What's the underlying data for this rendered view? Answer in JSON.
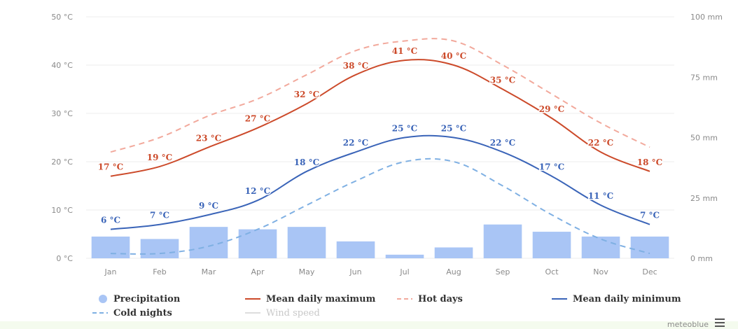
{
  "chart_data": {
    "type": "line",
    "categories": [
      "Jan",
      "Feb",
      "Mar",
      "Apr",
      "May",
      "Jun",
      "Jul",
      "Aug",
      "Sep",
      "Oct",
      "Nov",
      "Dec"
    ],
    "y_left": {
      "unit": "°C",
      "ylim": [
        0,
        50
      ],
      "ticks": [
        "0 °C",
        "10 °C",
        "20 °C",
        "30 °C",
        "40 °C",
        "50 °C"
      ]
    },
    "y_right": {
      "unit": "mm",
      "ylim": [
        0,
        100
      ],
      "ticks": [
        "0 mm",
        "25 mm",
        "50 mm",
        "75 mm",
        "100 mm"
      ]
    },
    "series": [
      {
        "name": "Precipitation",
        "kind": "bar",
        "axis": "right",
        "color": "#a9c5f5",
        "values": [
          9,
          8,
          13,
          12,
          13,
          7,
          1.5,
          4.5,
          14,
          11,
          9,
          9
        ]
      },
      {
        "name": "Mean daily maximum",
        "kind": "line",
        "axis": "left",
        "color": "#cc4a2a",
        "values": [
          17,
          19,
          23,
          27,
          32,
          38,
          41,
          40,
          35,
          29,
          22,
          18
        ],
        "labels": [
          "17 °C",
          "19 °C",
          "23 °C",
          "27 °C",
          "32 °C",
          "38 °C",
          "41 °C",
          "40 °C",
          "35 °C",
          "29 °C",
          "22 °C",
          "18 °C"
        ]
      },
      {
        "name": "Hot days",
        "kind": "line",
        "dash": true,
        "axis": "left",
        "color": "#f2a99c",
        "values": [
          22,
          25,
          29.5,
          33,
          38,
          43,
          45,
          45,
          40,
          34,
          28,
          23
        ]
      },
      {
        "name": "Mean daily minimum",
        "kind": "line",
        "axis": "left",
        "color": "#3a64b8",
        "values": [
          6,
          7,
          9,
          12,
          18,
          22,
          25,
          25,
          22,
          17,
          11,
          7
        ],
        "labels": [
          "6 °C",
          "7 °C",
          "9 °C",
          "12 °C",
          "18 °C",
          "22 °C",
          "25 °C",
          "25 °C",
          "22 °C",
          "17 °C",
          "11 °C",
          "7 °C"
        ]
      },
      {
        "name": "Cold nights",
        "kind": "line",
        "dash": true,
        "axis": "left",
        "color": "#7fb0e3",
        "values": [
          1,
          1,
          2.5,
          6,
          11,
          16,
          20,
          20,
          15,
          9,
          4,
          1
        ]
      }
    ],
    "grid": true
  },
  "legend": [
    {
      "label": "Precipitation",
      "marker": "dot",
      "color": "#a9c5f5"
    },
    {
      "label": "Mean daily maximum",
      "marker": "line",
      "color": "#cc4a2a"
    },
    {
      "label": "Hot days",
      "marker": "dash",
      "color": "#f2a99c"
    },
    {
      "label": "Mean daily minimum",
      "marker": "line",
      "color": "#3a64b8"
    },
    {
      "label": "Cold nights",
      "marker": "dash",
      "color": "#7fb0e3"
    },
    {
      "label": "Wind speed",
      "marker": "line",
      "color": "#dddddd",
      "dim": true
    }
  ],
  "credit": "meteoblue",
  "menu_icon": "hamburger-menu-icon"
}
